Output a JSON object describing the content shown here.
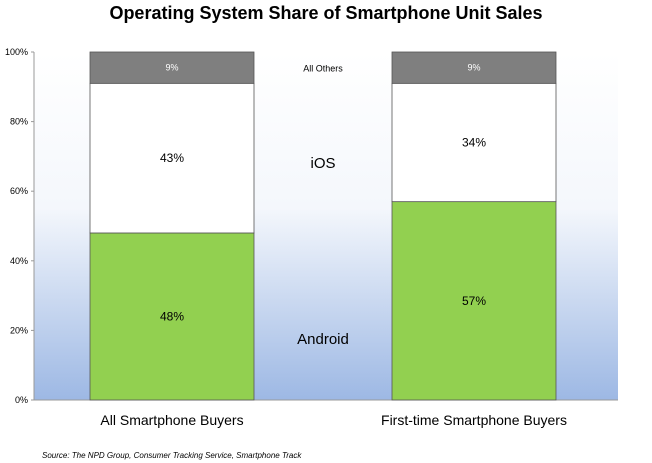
{
  "title": "Operating System Share of Smartphone Unit Sales",
  "source": "Source: The NPD Group, Consumer Tracking Service, Smartphone Track",
  "chart_data": {
    "type": "bar",
    "stacked": true,
    "categories": [
      "All Smartphone Buyers",
      "First-time Smartphone Buyers"
    ],
    "series": [
      {
        "name": "Android",
        "values": [
          48,
          57
        ],
        "labels": [
          "48%",
          "57%"
        ],
        "color": "#92d050"
      },
      {
        "name": "iOS",
        "values": [
          43,
          34
        ],
        "labels": [
          "43%",
          "34%"
        ],
        "color": "#ffffff"
      },
      {
        "name": "All Others",
        "values": [
          9,
          9
        ],
        "labels": [
          "9%",
          "9%"
        ],
        "color": "#7f7f7f"
      }
    ],
    "ylim": [
      0,
      100
    ],
    "yticks": [
      "0%",
      "20%",
      "40%",
      "60%",
      "80%",
      "100%"
    ],
    "ytick_values": [
      0,
      20,
      40,
      60,
      80,
      100
    ],
    "grid": false,
    "legend": "series names shown between bars",
    "background": "gradient white to light blue"
  }
}
